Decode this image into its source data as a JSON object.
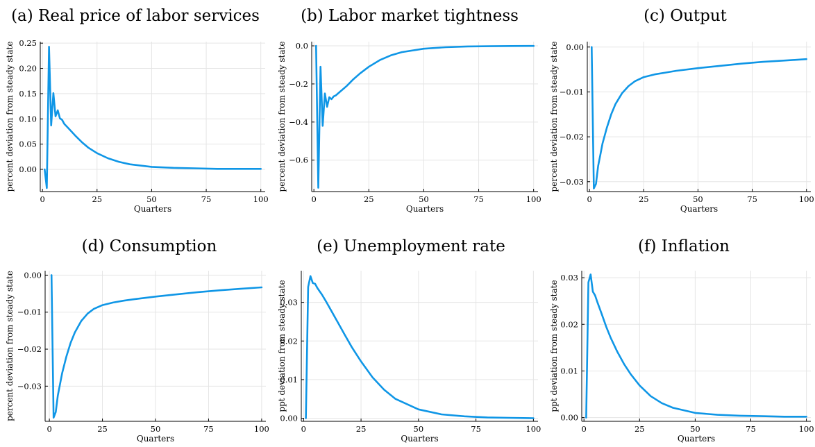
{
  "chart_data": [
    {
      "type": "line",
      "title": "(a) Real price of labor services",
      "xlabel": "Quarters",
      "ylabel": "percent deviation from steady state",
      "xlim": [
        -1,
        102
      ],
      "ylim": [
        -0.044,
        0.253
      ],
      "xticks": [
        0,
        25,
        50,
        75,
        100
      ],
      "xticklabels": [
        "0",
        "25",
        "50",
        "75",
        "100"
      ],
      "yticks": [
        0.0,
        0.05,
        0.1,
        0.15,
        0.2,
        0.25
      ],
      "yticklabels": [
        "0.00",
        "0.05",
        "0.10",
        "0.15",
        "0.20",
        "0.25"
      ],
      "color": "#0f96e6",
      "grid": true,
      "legend": "none",
      "x": [
        1,
        2,
        3,
        4,
        5,
        6,
        7,
        8,
        9,
        10,
        12,
        15,
        18,
        21,
        25,
        30,
        35,
        40,
        50,
        60,
        70,
        80,
        90,
        100
      ],
      "y": [
        0.0,
        -0.037,
        0.243,
        0.087,
        0.151,
        0.105,
        0.117,
        0.101,
        0.098,
        0.09,
        0.081,
        0.067,
        0.054,
        0.043,
        0.032,
        0.022,
        0.015,
        0.01,
        0.005,
        0.003,
        0.002,
        0.001,
        0.001,
        0.001
      ]
    },
    {
      "type": "line",
      "title": "(b) Labor market tightness",
      "xlabel": "Quarters",
      "ylabel": "percent deviation from steady state",
      "xlim": [
        -1,
        102
      ],
      "ylim": [
        -0.765,
        0.022
      ],
      "xticks": [
        0,
        25,
        50,
        75,
        100
      ],
      "xticklabels": [
        "0",
        "25",
        "50",
        "75",
        "100"
      ],
      "yticks": [
        -0.6,
        -0.4,
        -0.2,
        0.0
      ],
      "yticklabels": [
        "−0.6",
        "−0.4",
        "−0.2",
        "0.0"
      ],
      "color": "#0f96e6",
      "grid": true,
      "legend": "none",
      "x": [
        1,
        2,
        3,
        4,
        5,
        6,
        7,
        8,
        9,
        10,
        12,
        15,
        18,
        21,
        25,
        30,
        35,
        40,
        50,
        60,
        70,
        80,
        90,
        100
      ],
      "y": [
        0.0,
        -0.745,
        -0.11,
        -0.42,
        -0.25,
        -0.32,
        -0.27,
        -0.28,
        -0.265,
        -0.26,
        -0.24,
        -0.21,
        -0.175,
        -0.145,
        -0.11,
        -0.075,
        -0.05,
        -0.033,
        -0.015,
        -0.007,
        -0.003,
        -0.002,
        -0.001,
        -0.0005
      ]
    },
    {
      "type": "line",
      "title": "(c) Output",
      "xlabel": "Quarters",
      "ylabel": "percent deviation from steady state",
      "xlim": [
        -1,
        102
      ],
      "ylim": [
        -0.0322,
        0.0012
      ],
      "xticks": [
        0,
        25,
        50,
        75,
        100
      ],
      "xticklabels": [
        "0",
        "25",
        "50",
        "75",
        "100"
      ],
      "yticks": [
        -0.03,
        -0.02,
        -0.01,
        0.0
      ],
      "yticklabels": [
        "−0.03",
        "−0.02",
        "−0.01",
        "0.00"
      ],
      "color": "#0f96e6",
      "grid": true,
      "legend": "none",
      "x": [
        1,
        2,
        3,
        4,
        5,
        6,
        8,
        10,
        12,
        15,
        18,
        21,
        25,
        30,
        35,
        40,
        50,
        60,
        70,
        80,
        90,
        100
      ],
      "y": [
        0.0,
        -0.0315,
        -0.0305,
        -0.0265,
        -0.024,
        -0.0215,
        -0.018,
        -0.015,
        -0.0127,
        -0.0103,
        -0.0087,
        -0.0076,
        -0.0067,
        -0.0061,
        -0.0057,
        -0.0053,
        -0.0047,
        -0.0042,
        -0.0037,
        -0.0033,
        -0.003,
        -0.0027
      ]
    },
    {
      "type": "line",
      "title": "(d) Consumption",
      "xlabel": "Quarters",
      "ylabel": "percent deviation from steady state",
      "xlim": [
        -2,
        102
      ],
      "ylim": [
        -0.0395,
        0.0012
      ],
      "xticks": [
        0,
        25,
        50,
        75,
        100
      ],
      "xticklabels": [
        "0",
        "25",
        "50",
        "75",
        "100"
      ],
      "yticks": [
        -0.03,
        -0.02,
        -0.01,
        0.0
      ],
      "yticklabels": [
        "−0.03",
        "−0.02",
        "−0.01",
        "0.00"
      ],
      "color": "#0f96e6",
      "grid": true,
      "legend": "none",
      "x": [
        1,
        2,
        3,
        4,
        5,
        6,
        8,
        10,
        12,
        15,
        18,
        21,
        25,
        30,
        35,
        40,
        50,
        60,
        70,
        80,
        90,
        100
      ],
      "y": [
        0.0,
        -0.0385,
        -0.037,
        -0.0325,
        -0.0295,
        -0.0265,
        -0.022,
        -0.0183,
        -0.0155,
        -0.0124,
        -0.0104,
        -0.0091,
        -0.0081,
        -0.0074,
        -0.0069,
        -0.0065,
        -0.0058,
        -0.0052,
        -0.0046,
        -0.0041,
        -0.0037,
        -0.0033
      ]
    },
    {
      "type": "line",
      "title": "(e) Unemployment rate",
      "xlabel": "Quarters",
      "ylabel": "ppt deviation from steady state",
      "xlim": [
        -1,
        102
      ],
      "ylim": [
        -0.0008,
        0.0382
      ],
      "xticks": [
        0,
        25,
        50,
        75,
        100
      ],
      "xticklabels": [
        "0",
        "25",
        "50",
        "75",
        "100"
      ],
      "yticks": [
        0.0,
        0.01,
        0.02,
        0.03
      ],
      "yticklabels": [
        "0.00",
        "0.01",
        "0.02",
        "0.03"
      ],
      "color": "#0f96e6",
      "grid": true,
      "legend": "none",
      "x": [
        1,
        2,
        3,
        4,
        5,
        6,
        8,
        10,
        12,
        15,
        18,
        21,
        25,
        30,
        35,
        40,
        50,
        60,
        70,
        80,
        90,
        100
      ],
      "y": [
        0.0,
        0.034,
        0.0368,
        0.035,
        0.0348,
        0.0337,
        0.032,
        0.03,
        0.0279,
        0.0247,
        0.0215,
        0.0184,
        0.0147,
        0.0106,
        0.0074,
        0.005,
        0.0023,
        0.001,
        0.0005,
        0.0002,
        0.0001,
        0.0
      ]
    },
    {
      "type": "line",
      "title": "(f) Inflation",
      "xlabel": "Quarters",
      "ylabel": "ppt deviation from steady state",
      "xlim": [
        -1,
        102
      ],
      "ylim": [
        -0.0008,
        0.0315
      ],
      "xticks": [
        0,
        25,
        50,
        75,
        100
      ],
      "xticklabels": [
        "0",
        "25",
        "50",
        "75",
        "100"
      ],
      "yticks": [
        0.0,
        0.01,
        0.02,
        0.03
      ],
      "yticklabels": [
        "0.00",
        "0.01",
        "0.02",
        "0.03"
      ],
      "color": "#0f96e6",
      "grid": true,
      "legend": "none",
      "x": [
        1,
        2,
        3,
        4,
        5,
        6,
        8,
        10,
        12,
        15,
        18,
        21,
        25,
        30,
        35,
        40,
        50,
        60,
        70,
        80,
        90,
        100
      ],
      "y": [
        0.0,
        0.029,
        0.0307,
        0.027,
        0.0262,
        0.0248,
        0.0222,
        0.0195,
        0.0171,
        0.0141,
        0.0115,
        0.0093,
        0.0069,
        0.0046,
        0.0031,
        0.0021,
        0.001,
        0.0006,
        0.0004,
        0.0003,
        0.0002,
        0.0002
      ]
    }
  ]
}
